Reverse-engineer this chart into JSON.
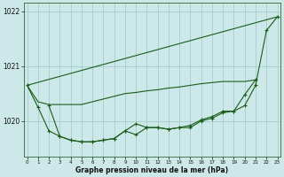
{
  "hours": [
    0,
    1,
    2,
    3,
    4,
    5,
    6,
    7,
    8,
    9,
    10,
    11,
    12,
    13,
    14,
    15,
    16,
    17,
    18,
    19,
    20,
    21,
    22,
    23
  ],
  "series1_straight": [
    1020.65,
    1021.9
  ],
  "series1_x": [
    0,
    23
  ],
  "series2": [
    1020.65,
    1020.35,
    1020.3,
    1020.3,
    1020.3,
    1020.3,
    1020.35,
    1020.4,
    1020.45,
    1020.5,
    1020.52,
    1020.55,
    1020.57,
    1020.6,
    1020.62,
    1020.65,
    1020.68,
    1020.7,
    1020.72,
    1020.72,
    1020.72,
    1020.75,
    null,
    null
  ],
  "series3": [
    1020.65,
    1020.25,
    1019.82,
    1019.72,
    1019.65,
    1019.62,
    1019.62,
    1019.65,
    1019.68,
    1019.82,
    1019.95,
    1019.88,
    1019.88,
    1019.85,
    1019.88,
    1019.88,
    1020.0,
    1020.05,
    1020.15,
    1020.18,
    1020.28,
    1020.65,
    1021.65,
    1021.9
  ],
  "series4": [
    null,
    null,
    1020.28,
    1019.72,
    1019.65,
    1019.62,
    1019.62,
    1019.65,
    1019.68,
    1019.82,
    1019.75,
    1019.88,
    1019.88,
    1019.85,
    1019.88,
    1019.92,
    1020.02,
    1020.08,
    1020.18,
    1020.18,
    1020.48,
    1020.75,
    null,
    null
  ],
  "bg_color": "#cde8e8",
  "grid_color": "#9ec8c8",
  "line_color": "#1a5c1a",
  "yticks": [
    1020,
    1021,
    1022
  ],
  "ylim": [
    1019.35,
    1022.15
  ],
  "xlim": [
    -0.3,
    23.3
  ],
  "xlabel": "Graphe pression niveau de la mer (hPa)"
}
